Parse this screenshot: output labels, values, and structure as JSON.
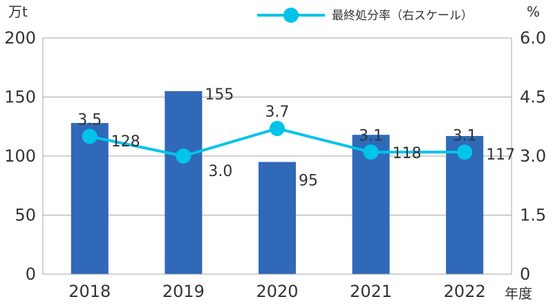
{
  "chart_data": {
    "type": "bar+line",
    "categories": [
      "2018",
      "2019",
      "2020",
      "2021",
      "2022"
    ],
    "xlabel": "年度",
    "left_axis": {
      "unit": "万t",
      "ylim": [
        0,
        200
      ],
      "ticks": [
        "200",
        "150",
        "100",
        "50",
        "0"
      ]
    },
    "right_axis": {
      "unit": "%",
      "ylim": [
        0,
        6.0
      ],
      "ticks": [
        "6.0",
        "4.5",
        "3.0",
        "1.5",
        "0"
      ]
    },
    "bar_series": {
      "values": [
        128,
        155,
        95,
        118,
        117
      ],
      "labels": [
        "128",
        "155",
        "95",
        "118",
        "117"
      ],
      "color": "#2f69b7"
    },
    "line_series": {
      "name": "最終処分率（右スケール）",
      "values": [
        3.5,
        3.0,
        3.7,
        3.1,
        3.1
      ],
      "labels": [
        "3.5",
        "3.0",
        "3.7",
        "3.1",
        "3.1"
      ],
      "color": "#00c4ea"
    },
    "grid": true,
    "legend": "top-right"
  }
}
